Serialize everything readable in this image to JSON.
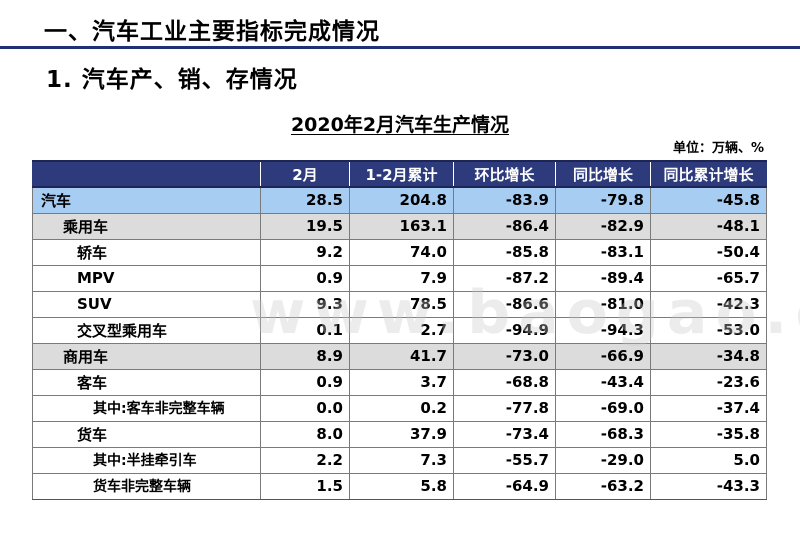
{
  "header": {
    "page_title": "一、汽车工业主要指标完成情况",
    "section_title": "1. 汽车产、销、存情况",
    "table_title": "2020年2月汽车生产情况",
    "unit": "单位：万辆、%"
  },
  "watermark": "www.baogao.com",
  "table": {
    "columns": [
      "",
      "2月",
      "1-2月累计",
      "环比增长",
      "同比增长",
      "同比累计增长"
    ],
    "rows": [
      {
        "level": 0,
        "name": "汽车",
        "feb": "28.5",
        "cum": "204.8",
        "mom": "-83.9",
        "yoy": "-79.8",
        "yoy_cum": "-45.8"
      },
      {
        "level": 1,
        "name": "乘用车",
        "feb": "19.5",
        "cum": "163.1",
        "mom": "-86.4",
        "yoy": "-82.9",
        "yoy_cum": "-48.1"
      },
      {
        "level": 2,
        "name": "轿车",
        "feb": "9.2",
        "cum": "74.0",
        "mom": "-85.8",
        "yoy": "-83.1",
        "yoy_cum": "-50.4"
      },
      {
        "level": 2,
        "name": "MPV",
        "feb": "0.9",
        "cum": "7.9",
        "mom": "-87.2",
        "yoy": "-89.4",
        "yoy_cum": "-65.7"
      },
      {
        "level": 2,
        "name": "SUV",
        "feb": "9.3",
        "cum": "78.5",
        "mom": "-86.6",
        "yoy": "-81.0",
        "yoy_cum": "-42.3"
      },
      {
        "level": 2,
        "name": "交叉型乘用车",
        "feb": "0.1",
        "cum": "2.7",
        "mom": "-94.9",
        "yoy": "-94.3",
        "yoy_cum": "-53.0"
      },
      {
        "level": 1,
        "name": "商用车",
        "feb": "8.9",
        "cum": "41.7",
        "mom": "-73.0",
        "yoy": "-66.9",
        "yoy_cum": "-34.8"
      },
      {
        "level": 2,
        "name": "客车",
        "feb": "0.9",
        "cum": "3.7",
        "mom": "-68.8",
        "yoy": "-43.4",
        "yoy_cum": "-23.6"
      },
      {
        "level": 3,
        "name": "其中:客车非完整车辆",
        "feb": "0.0",
        "cum": "0.2",
        "mom": "-77.8",
        "yoy": "-69.0",
        "yoy_cum": "-37.4"
      },
      {
        "level": 2,
        "name": "货车",
        "feb": "8.0",
        "cum": "37.9",
        "mom": "-73.4",
        "yoy": "-68.3",
        "yoy_cum": "-35.8"
      },
      {
        "level": 3,
        "name": "其中:半挂牵引车",
        "feb": "2.2",
        "cum": "7.3",
        "mom": "-55.7",
        "yoy": "-29.0",
        "yoy_cum": "5.0"
      },
      {
        "level": 3,
        "name": "货车非完整车辆",
        "feb": "1.5",
        "cum": "5.8",
        "mom": "-64.9",
        "yoy": "-63.2",
        "yoy_cum": "-43.3"
      }
    ]
  }
}
